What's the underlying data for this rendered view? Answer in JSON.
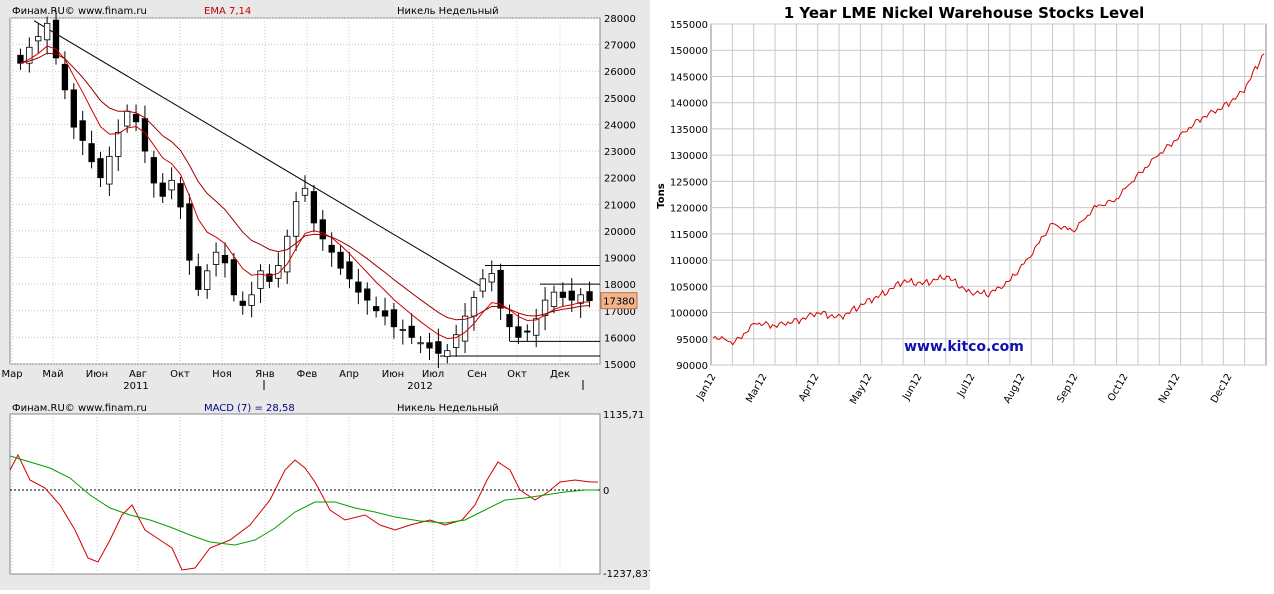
{
  "finam_price": {
    "header_source": "Финам.RU© www.finam.ru",
    "header_indicator": "EMA 7,14",
    "header_instrument": "Никель Недельный",
    "price_label": "17380",
    "y_ticks": [
      "28000",
      "27000",
      "26000",
      "25000",
      "24000",
      "23000",
      "22000",
      "21000",
      "20000",
      "19000",
      "18000",
      "17000",
      "16000",
      "15000"
    ],
    "month_labels": [
      "Мар",
      "Май",
      "Июн",
      "Авг",
      "Окт",
      "Ноя",
      "Янв",
      "Фев",
      "Апр",
      "Июн",
      "Июл",
      "Сен",
      "Окт",
      "Дек"
    ],
    "year_labels": [
      "2011",
      "2012"
    ]
  },
  "finam_macd": {
    "header_source": "Финам.RU© www.finam.ru",
    "header_indicator": "MACD (7) = 28,58",
    "header_instrument": "Никель Недельный",
    "top_value": "1135,71",
    "zero_value": "0",
    "bottom_value": "-1237,837"
  },
  "kitco": {
    "title": "1 Year LME Nickel Warehouse Stocks Level",
    "ylabel": "Tons",
    "watermark": "www.kitco.com",
    "y_ticks": [
      "155000",
      "150000",
      "145000",
      "140000",
      "135000",
      "130000",
      "125000",
      "120000",
      "115000",
      "110000",
      "105000",
      "100000",
      "95000",
      "90000"
    ],
    "x_ticks": [
      "Jan12",
      "Mar12",
      "Apr12",
      "May12",
      "Jun12",
      "Jul12",
      "Aug12",
      "Sep12",
      "Oct12",
      "Nov12",
      "Dec12"
    ]
  },
  "chart_data": [
    {
      "type": "candlestick",
      "instrument": "Никель Недельный",
      "ylim": [
        15000,
        28000
      ],
      "series": [
        {
          "name": "EMA 7,14"
        }
      ],
      "close_approx": [
        26300,
        26900,
        27300,
        27800,
        26500,
        25300,
        23900,
        23400,
        22600,
        22000,
        22800,
        23700,
        24500,
        24100,
        23000,
        21800,
        21300,
        21900,
        20900,
        18900,
        17800,
        18500,
        19200,
        18800,
        17600,
        17200,
        17600,
        18500,
        18100,
        18700,
        19800,
        21100,
        21600,
        20300,
        19700,
        19200,
        18600,
        18200,
        17700,
        17400,
        17000,
        16800,
        16400,
        16300,
        16000,
        15800,
        15600,
        15400,
        15500,
        16100,
        16800,
        17500,
        18200,
        18400,
        17100,
        16400,
        16000,
        16200,
        16700,
        17400,
        17700,
        17500,
        17400,
        17600,
        17380
      ],
      "macd_ylim": [
        -1237.837,
        1135.71
      ]
    },
    {
      "type": "line",
      "title": "1 Year LME Nickel Warehouse Stocks Level",
      "ylabel": "Tons",
      "ylim": [
        90000,
        155000
      ],
      "categories": [
        "Jan12",
        "Mar12",
        "Apr12",
        "May12",
        "Jun12",
        "Jul12",
        "Aug12",
        "Sep12",
        "Oct12",
        "Nov12",
        "Dec12"
      ],
      "x": [
        0,
        2,
        4,
        6,
        8,
        10,
        12,
        14,
        16,
        18,
        20,
        22,
        24,
        26,
        28,
        30,
        32,
        34,
        36,
        38,
        40,
        42,
        44,
        46,
        48,
        50,
        52
      ],
      "values": [
        95500,
        94200,
        98000,
        97500,
        98500,
        100000,
        99000,
        101500,
        103500,
        106000,
        105500,
        107000,
        104000,
        103500,
        106000,
        111000,
        117000,
        115500,
        120000,
        121500,
        126000,
        130000,
        133500,
        137000,
        139000,
        142000,
        149500
      ],
      "grid": true
    }
  ]
}
